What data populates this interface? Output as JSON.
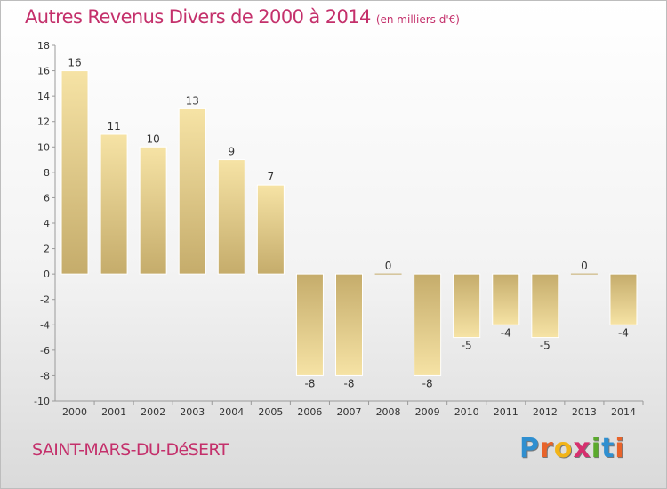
{
  "chart_data": {
    "type": "bar",
    "title": "Autres Revenus Divers de 2000 à 2014",
    "subtitle": "(en milliers d'€)",
    "categories": [
      "2000",
      "2001",
      "2002",
      "2003",
      "2004",
      "2005",
      "2006",
      "2007",
      "2008",
      "2009",
      "2010",
      "2011",
      "2012",
      "2013",
      "2014"
    ],
    "values": [
      16,
      11,
      10,
      13,
      9,
      7,
      -8,
      -8,
      0,
      -8,
      -5,
      -4,
      -5,
      0,
      -4
    ],
    "ylim": [
      -10,
      18
    ],
    "yticks": [
      -10,
      -8,
      -6,
      -4,
      -2,
      0,
      2,
      4,
      6,
      8,
      10,
      12,
      14,
      16,
      18
    ],
    "grid": false,
    "bar_color": "#dcc27e"
  },
  "commune": "SAINT-MARS-DU-DéSERT",
  "logo": {
    "letters": [
      "P",
      "r",
      "o",
      "x",
      "i",
      "t",
      "i"
    ],
    "colors": [
      "#2f8fd0",
      "#e8632a",
      "#f2b418",
      "#d6306e",
      "#5aaa2c",
      "#2f8fd0",
      "#e8632a"
    ]
  },
  "accent_color": "#c4306b"
}
